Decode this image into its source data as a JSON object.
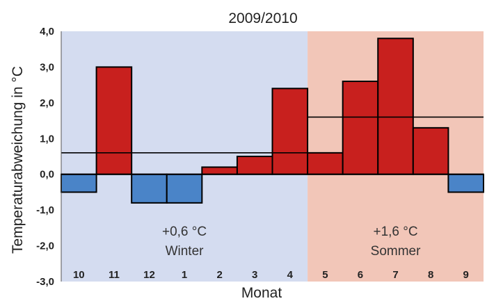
{
  "chart_data": {
    "type": "bar",
    "title": "2009/2010",
    "xlabel": "Monat",
    "ylabel": "Temperaturabweichung in °C",
    "categories": [
      "10",
      "11",
      "12",
      "1",
      "2",
      "3",
      "4",
      "5",
      "6",
      "7",
      "8",
      "9"
    ],
    "values": [
      -0.5,
      3.0,
      -0.8,
      -0.8,
      0.2,
      0.5,
      2.4,
      0.6,
      2.6,
      3.8,
      1.3,
      -0.5
    ],
    "ylim": [
      -3.0,
      4.0
    ],
    "yticks": [
      "4,0",
      "3,0",
      "2,0",
      "1,0",
      "0,0",
      "-1,0",
      "-2,0",
      "-3,0"
    ],
    "grid": false,
    "colors": {
      "positive": "#c8201e",
      "negative": "#4a84c8",
      "winter_bg": "#d4dcf0",
      "summer_bg": "#f2c6b8"
    },
    "seasons": [
      {
        "label": "Winter",
        "value_label": "+0,6 °C",
        "mean": 0.6,
        "first_index": 0,
        "last_index": 6
      },
      {
        "label": "Sommer",
        "value_label": "+1,6 °C",
        "mean": 1.6,
        "first_index": 7,
        "last_index": 11
      }
    ]
  }
}
